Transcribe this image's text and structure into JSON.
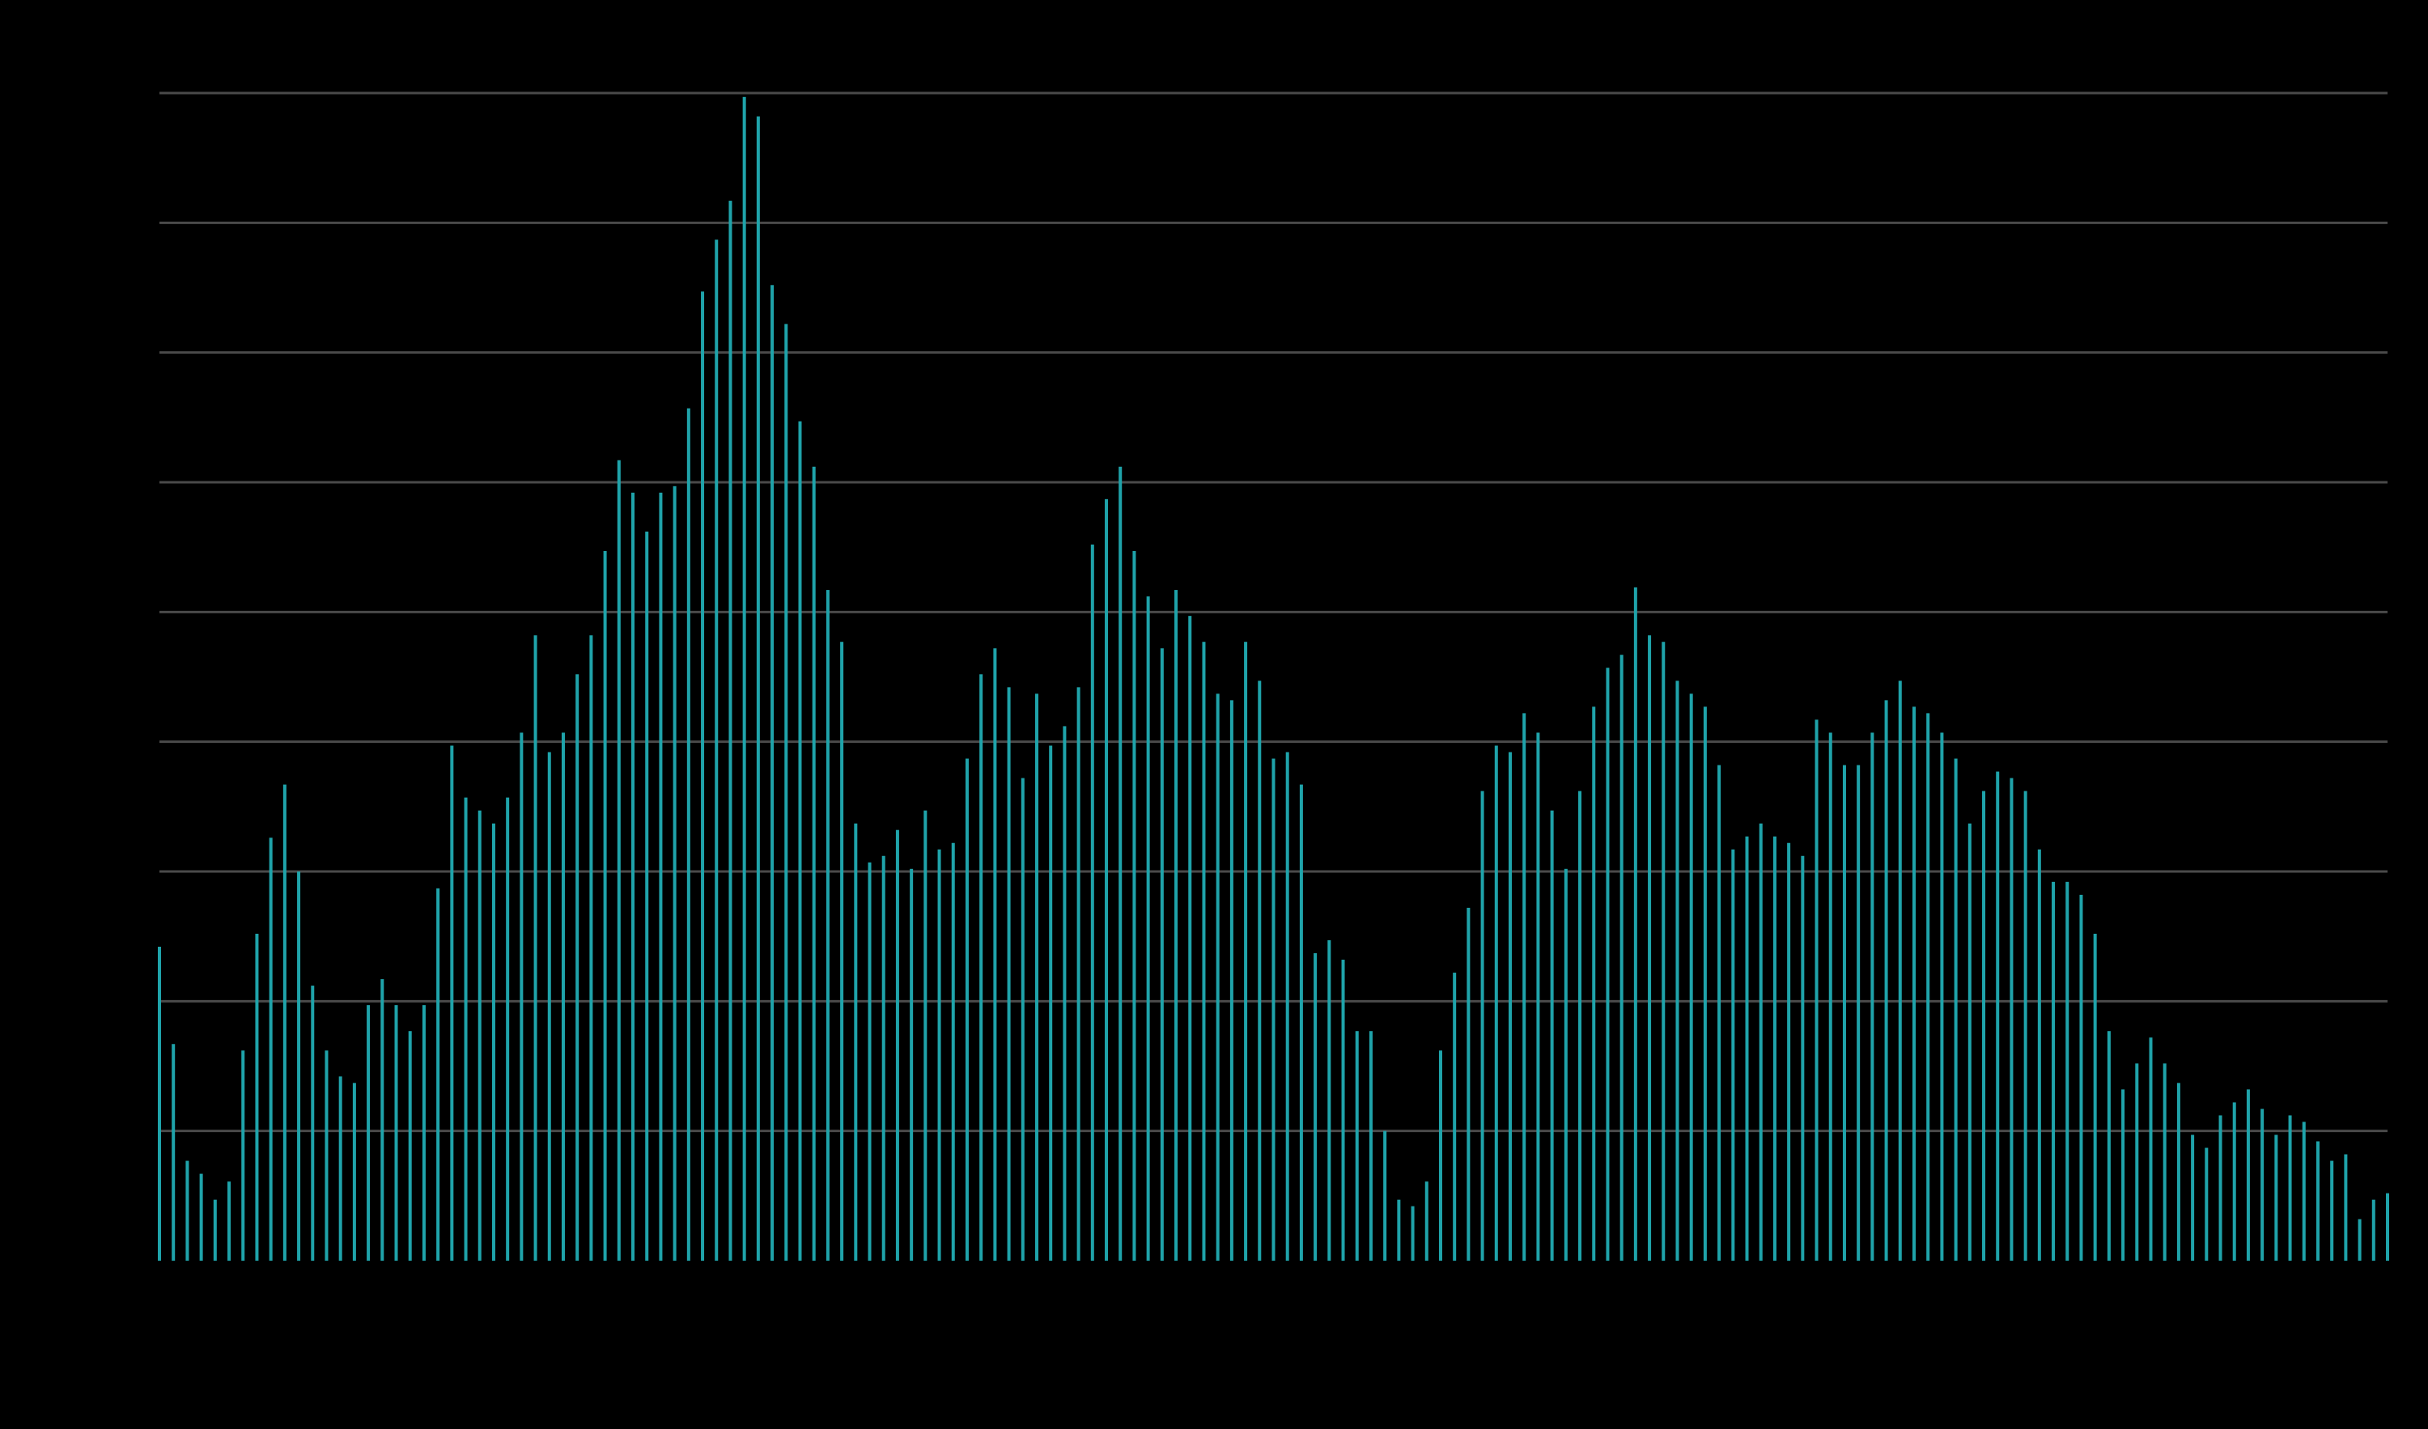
{
  "chart_data": {
    "type": "bar",
    "title": "",
    "xlabel": "",
    "ylabel": "",
    "ylim": [
      0,
      9
    ],
    "grid": true,
    "gridlines": [
      1,
      2,
      3,
      4,
      5,
      6,
      7,
      8,
      9
    ],
    "series": [
      {
        "color": "#1fa3aa",
        "values": [
          2.42,
          1.67,
          0.77,
          0.67,
          0.47,
          0.61,
          1.62,
          2.52,
          3.26,
          3.67,
          3.0,
          2.12,
          1.62,
          1.42,
          1.37,
          1.97,
          2.17,
          1.97,
          1.77,
          1.97,
          2.87,
          3.97,
          3.57,
          3.47,
          3.37,
          3.57,
          4.07,
          4.82,
          3.92,
          4.07,
          4.52,
          4.82,
          5.47,
          6.17,
          5.92,
          5.62,
          5.92,
          5.97,
          6.57,
          7.47,
          7.87,
          8.17,
          8.97,
          8.82,
          7.52,
          7.22,
          6.47,
          6.12,
          5.17,
          4.77,
          3.37,
          3.07,
          3.12,
          3.32,
          3.02,
          3.47,
          3.17,
          3.22,
          3.87,
          4.52,
          4.72,
          4.42,
          3.72,
          4.37,
          3.97,
          4.12,
          4.42,
          5.52,
          5.87,
          6.12,
          5.47,
          5.12,
          4.72,
          5.17,
          4.97,
          4.77,
          4.37,
          4.32,
          4.77,
          4.47,
          3.87,
          3.92,
          3.67,
          2.37,
          2.47,
          2.32,
          1.77,
          1.77,
          1.0,
          0.47,
          0.42,
          0.61,
          1.62,
          2.22,
          2.72,
          3.62,
          3.97,
          3.92,
          4.22,
          4.07,
          3.47,
          3.02,
          3.62,
          4.27,
          4.57,
          4.67,
          5.19,
          4.82,
          4.77,
          4.47,
          4.37,
          4.27,
          3.82,
          3.17,
          3.27,
          3.37,
          3.27,
          3.22,
          3.12,
          4.17,
          4.07,
          3.82,
          3.82,
          4.07,
          4.32,
          4.47,
          4.27,
          4.22,
          4.07,
          3.87,
          3.37,
          3.62,
          3.77,
          3.72,
          3.62,
          3.17,
          2.92,
          2.92,
          2.82,
          2.52,
          1.77,
          1.32,
          1.52,
          1.72,
          1.52,
          1.37,
          0.97,
          0.87,
          1.12,
          1.22,
          1.32,
          1.17,
          0.97,
          1.12,
          1.07,
          0.92,
          0.77,
          0.82,
          0.32,
          0.47,
          0.52
        ]
      }
    ]
  }
}
